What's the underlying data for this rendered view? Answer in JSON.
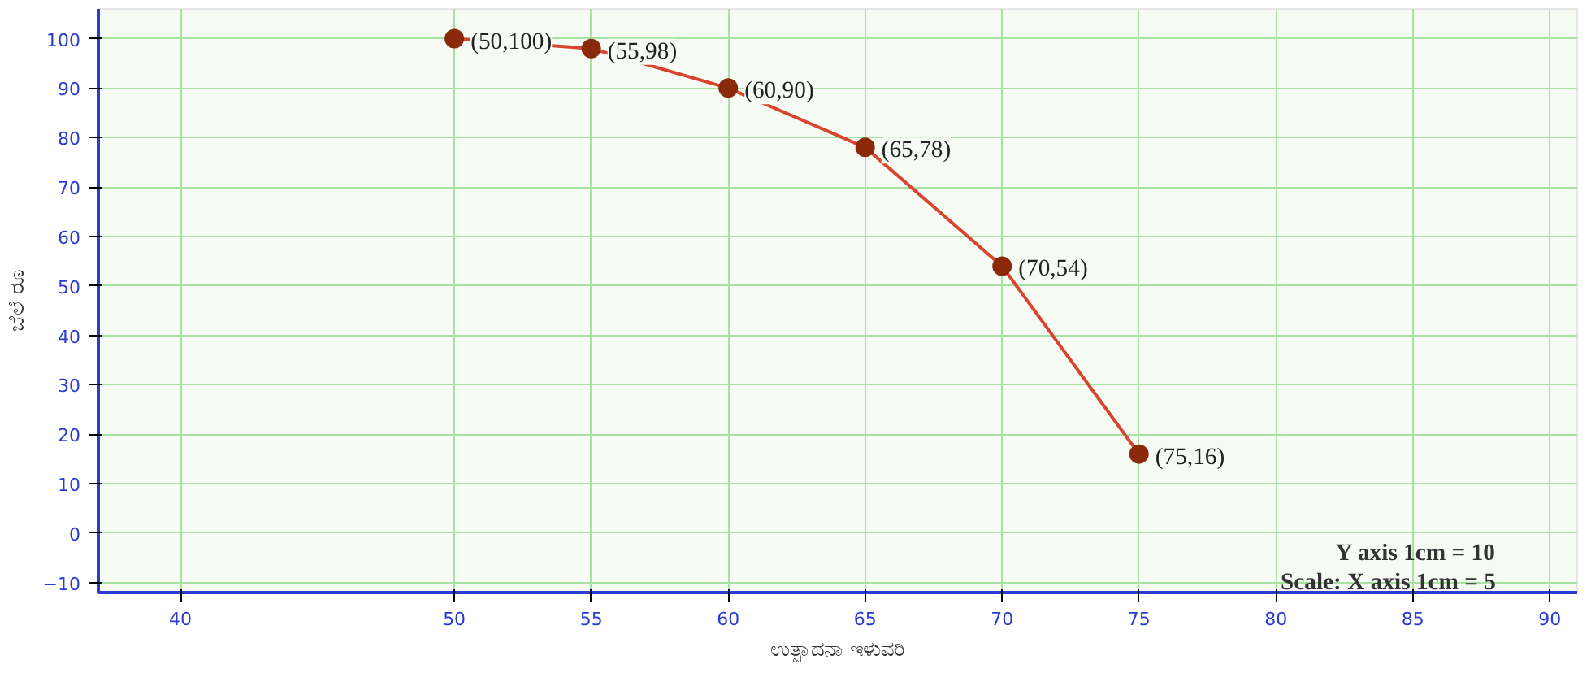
{
  "chart_data": {
    "type": "line",
    "xlabel": "ಉತ್ಪಾದನಾ ಇಳುವರಿ",
    "ylabel": "ಬೆಲೆ ರೂ",
    "annotations": [
      "Scale: X axis 1cm = 5",
      "Y axis 1cm = 10",
      {
        "text": "(50,100)",
        "x": 50,
        "y": 100
      },
      {
        "text": "(55,98)",
        "x": 55,
        "y": 98
      },
      {
        "text": "(60,90)",
        "x": 60,
        "y": 90
      },
      {
        "text": "(65,78)",
        "x": 65,
        "y": 78
      },
      {
        "text": "(70,54)",
        "x": 70,
        "y": 54
      },
      {
        "text": "(75,16)",
        "x": 75,
        "y": 16
      }
    ],
    "x": [
      50,
      55,
      60,
      65,
      70,
      75
    ],
    "series": [
      {
        "color": "#d9442f",
        "values": [
          100,
          98,
          90,
          78,
          54,
          16
        ]
      }
    ],
    "xlim": [
      37,
      91
    ],
    "xticks": [
      40,
      50,
      55,
      60,
      65,
      70,
      75,
      80,
      85,
      90
    ],
    "ylim": [
      -12,
      106
    ],
    "yticks": [
      -10,
      0,
      10,
      20,
      30,
      40,
      50,
      60,
      70,
      80,
      90,
      100
    ],
    "grid": true,
    "marker": "circle",
    "line_style": "solid"
  }
}
